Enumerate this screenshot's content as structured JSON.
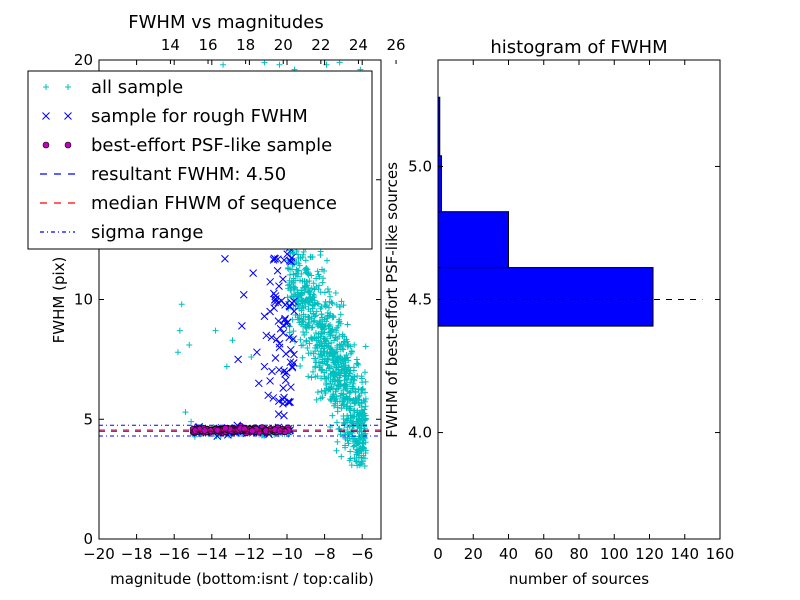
{
  "chart_data": [
    {
      "type": "scatter",
      "title": "FWHM vs magnitudes",
      "xlabel": "magnitude (bottom:isnt / top:calib)",
      "ylabel": "FWHM (pix)",
      "xlim": [
        -20,
        -5
      ],
      "ylim": [
        0,
        20
      ],
      "x_ticks": [
        -20,
        -18,
        -16,
        -14,
        -12,
        -10,
        -8,
        -6
      ],
      "x_tick_labels": [
        "−20",
        "−18",
        "−16",
        "−14",
        "−12",
        "−10",
        "−8",
        "−6"
      ],
      "y_ticks": [
        0,
        5,
        10,
        15,
        20
      ],
      "y_tick_labels": [
        "0",
        "5",
        "10",
        "15",
        "20"
      ],
      "top_axis": {
        "offset": 30.2,
        "ticks": [
          14,
          16,
          18,
          20,
          22,
          24,
          26
        ],
        "tick_labels": [
          "14",
          "16",
          "18",
          "20",
          "22",
          "24",
          "26"
        ]
      },
      "legend": {
        "placement": "upper-left",
        "entries": [
          {
            "label": "all sample",
            "marker": "plus",
            "color": "#00bfbf"
          },
          {
            "label": "sample for rough FWHM",
            "marker": "x",
            "color": "#0000ff"
          },
          {
            "label": "best-effort PSF-like sample",
            "marker": "circle",
            "color": "#bf00bf"
          },
          {
            "label": "resultant FWHM: 4.50",
            "line": "dashed",
            "color": "#0000ff"
          },
          {
            "label": "median FHWM of sequence",
            "line": "dashed",
            "color": "#ff0000"
          },
          {
            "label": "sigma range",
            "line": "dashdot",
            "color": "#0000ff"
          }
        ]
      },
      "series": [
        {
          "name": "all sample",
          "marker": "plus",
          "color": "#00bfbf",
          "points": [
            [
              -15.6,
              9.8
            ],
            [
              -15.7,
              8.7
            ],
            [
              -15.8,
              7.8
            ],
            [
              -15.2,
              8.1
            ],
            [
              -13.8,
              8.7
            ],
            [
              -13.2,
              7.2
            ],
            [
              -12.9,
              8.3
            ],
            [
              -11.9,
              7.6
            ],
            [
              -15.4,
              5.3
            ],
            [
              -15.1,
              4.9
            ],
            [
              -13.4,
              19.8
            ],
            [
              -11.2,
              19.9
            ],
            [
              -10.4,
              19.8
            ],
            [
              -9.6,
              19.6
            ],
            [
              -7.9,
              19.8
            ],
            [
              -7.2,
              19.9
            ],
            [
              -6.1,
              19.6
            ],
            [
              -11.5,
              16.2
            ],
            [
              -10.8,
              17.1
            ],
            [
              -9.2,
              17.4
            ],
            [
              -8.5,
              16.8
            ],
            [
              -8.8,
              18.6
            ]
          ],
          "cloud": {
            "x_range": [
              -10.0,
              -5.8
            ],
            "y_range": [
              3.0,
              17.0
            ],
            "approx_count": 900
          }
        },
        {
          "name": "sample for rough FWHM",
          "marker": "x",
          "color": "#0000ff",
          "points": [
            [
              -13.3,
              11.7
            ],
            [
              -11.8,
              11.1
            ],
            [
              -12.3,
              10.2
            ],
            [
              -11.2,
              9.3
            ],
            [
              -12.4,
              8.9
            ],
            [
              -11.1,
              8.5
            ],
            [
              -11.6,
              7.8
            ],
            [
              -12.6,
              7.5
            ],
            [
              -11.2,
              7.2
            ],
            [
              -11.0,
              6.0
            ],
            [
              -11.5,
              6.5
            ],
            [
              -10.8,
              7.0
            ],
            [
              -10.4,
              8.0
            ],
            [
              -10.9,
              9.5
            ],
            [
              -11.4,
              12.5
            ],
            [
              -10.5,
              11.2
            ],
            [
              -9.9,
              12.3
            ],
            [
              -10.2,
              8.6
            ],
            [
              -9.8,
              7.9
            ],
            [
              -10.1,
              9.2
            ],
            [
              -10.6,
              13.2
            ],
            [
              -11.2,
              13.9
            ],
            [
              -10.3,
              14.5
            ],
            [
              -9.9,
              15.2
            ],
            [
              -10.5,
              15.8
            ],
            [
              -10.9,
              6.6
            ],
            [
              -10.2,
              6.3
            ],
            [
              -9.9,
              5.7
            ]
          ]
        },
        {
          "name": "best-effort PSF-like sample",
          "marker": "circle",
          "color": "#bf00bf",
          "range": {
            "x": [
              -15.0,
              -9.9
            ],
            "y": [
              4.3,
              4.8
            ]
          }
        }
      ],
      "hlines": [
        {
          "name": "resultant FWHM: 4.50",
          "y": 4.5,
          "style": "dashed",
          "color": "#0000ff"
        },
        {
          "name": "median FHWM of sequence",
          "y": 4.55,
          "style": "dashed",
          "color": "#ff0000"
        },
        {
          "name": "sigma range",
          "y": 4.3,
          "style": "dashdot",
          "color": "#0000ff"
        },
        {
          "name": "sigma range",
          "y": 4.75,
          "style": "dashdot",
          "color": "#0000ff"
        }
      ]
    },
    {
      "type": "bar",
      "orientation": "horizontal",
      "title": "histogram of FWHM",
      "xlabel": "number of sources",
      "ylabel": "FWHM of best-effort PSF-like sources",
      "xlim": [
        0,
        160
      ],
      "ylim": [
        3.6,
        5.4
      ],
      "x_ticks": [
        0,
        20,
        40,
        60,
        80,
        100,
        120,
        140,
        160
      ],
      "x_tick_labels": [
        "0",
        "20",
        "40",
        "60",
        "80",
        "100",
        "120",
        "140",
        "160"
      ],
      "y_ticks": [
        4.0,
        4.5,
        5.0
      ],
      "y_tick_labels": [
        "4.0",
        "4.5",
        "5.0"
      ],
      "bar_color": "#0000ff",
      "bins": [
        {
          "y_from": 4.4,
          "y_to": 4.62,
          "count": 122
        },
        {
          "y_from": 4.62,
          "y_to": 4.83,
          "count": 40
        },
        {
          "y_from": 4.83,
          "y_to": 5.04,
          "count": 2
        },
        {
          "y_from": 5.04,
          "y_to": 5.26,
          "count": 1
        }
      ],
      "hline": {
        "y": 4.5,
        "style": "dashed",
        "color": "#000000"
      }
    }
  ]
}
